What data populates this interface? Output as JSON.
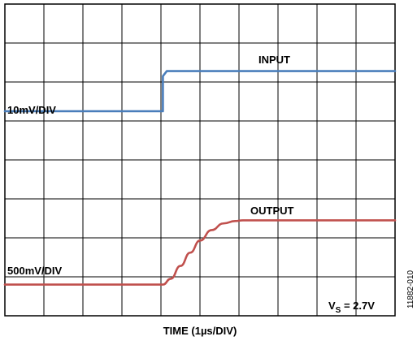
{
  "chart_data": {
    "type": "line",
    "title": "",
    "xlabel": "TIME (1µs/DIV)",
    "ylabel": "",
    "grid": true,
    "x_divisions": 10,
    "y_divisions": 8,
    "xlim": [
      0,
      10
    ],
    "ylim": [
      0,
      8
    ],
    "series": [
      {
        "name": "INPUT",
        "color": "#4a7ebb",
        "scale_label": "10mV/DIV",
        "x": [
          0,
          4.05,
          4.05,
          4.15,
          10
        ],
        "y": [
          5.25,
          5.25,
          6.15,
          6.28,
          6.28
        ]
      },
      {
        "name": "OUTPUT",
        "color": "#c0504d",
        "scale_label": "500mV/DIV",
        "x": [
          0,
          4.05,
          4.25,
          4.5,
          4.75,
          5.0,
          5.3,
          5.6,
          5.9,
          6.1,
          10
        ],
        "y": [
          0.8,
          0.8,
          0.95,
          1.28,
          1.62,
          1.93,
          2.2,
          2.37,
          2.43,
          2.45,
          2.45
        ]
      }
    ],
    "annotations": {
      "input_label": "INPUT",
      "output_label": "OUTPUT",
      "input_scale": "10mV/DIV",
      "output_scale": "500mV/DIV",
      "supply_main": "V",
      "supply_sub": "S",
      "supply_value": " = 2.7V"
    }
  },
  "figure_id": "11882-010"
}
